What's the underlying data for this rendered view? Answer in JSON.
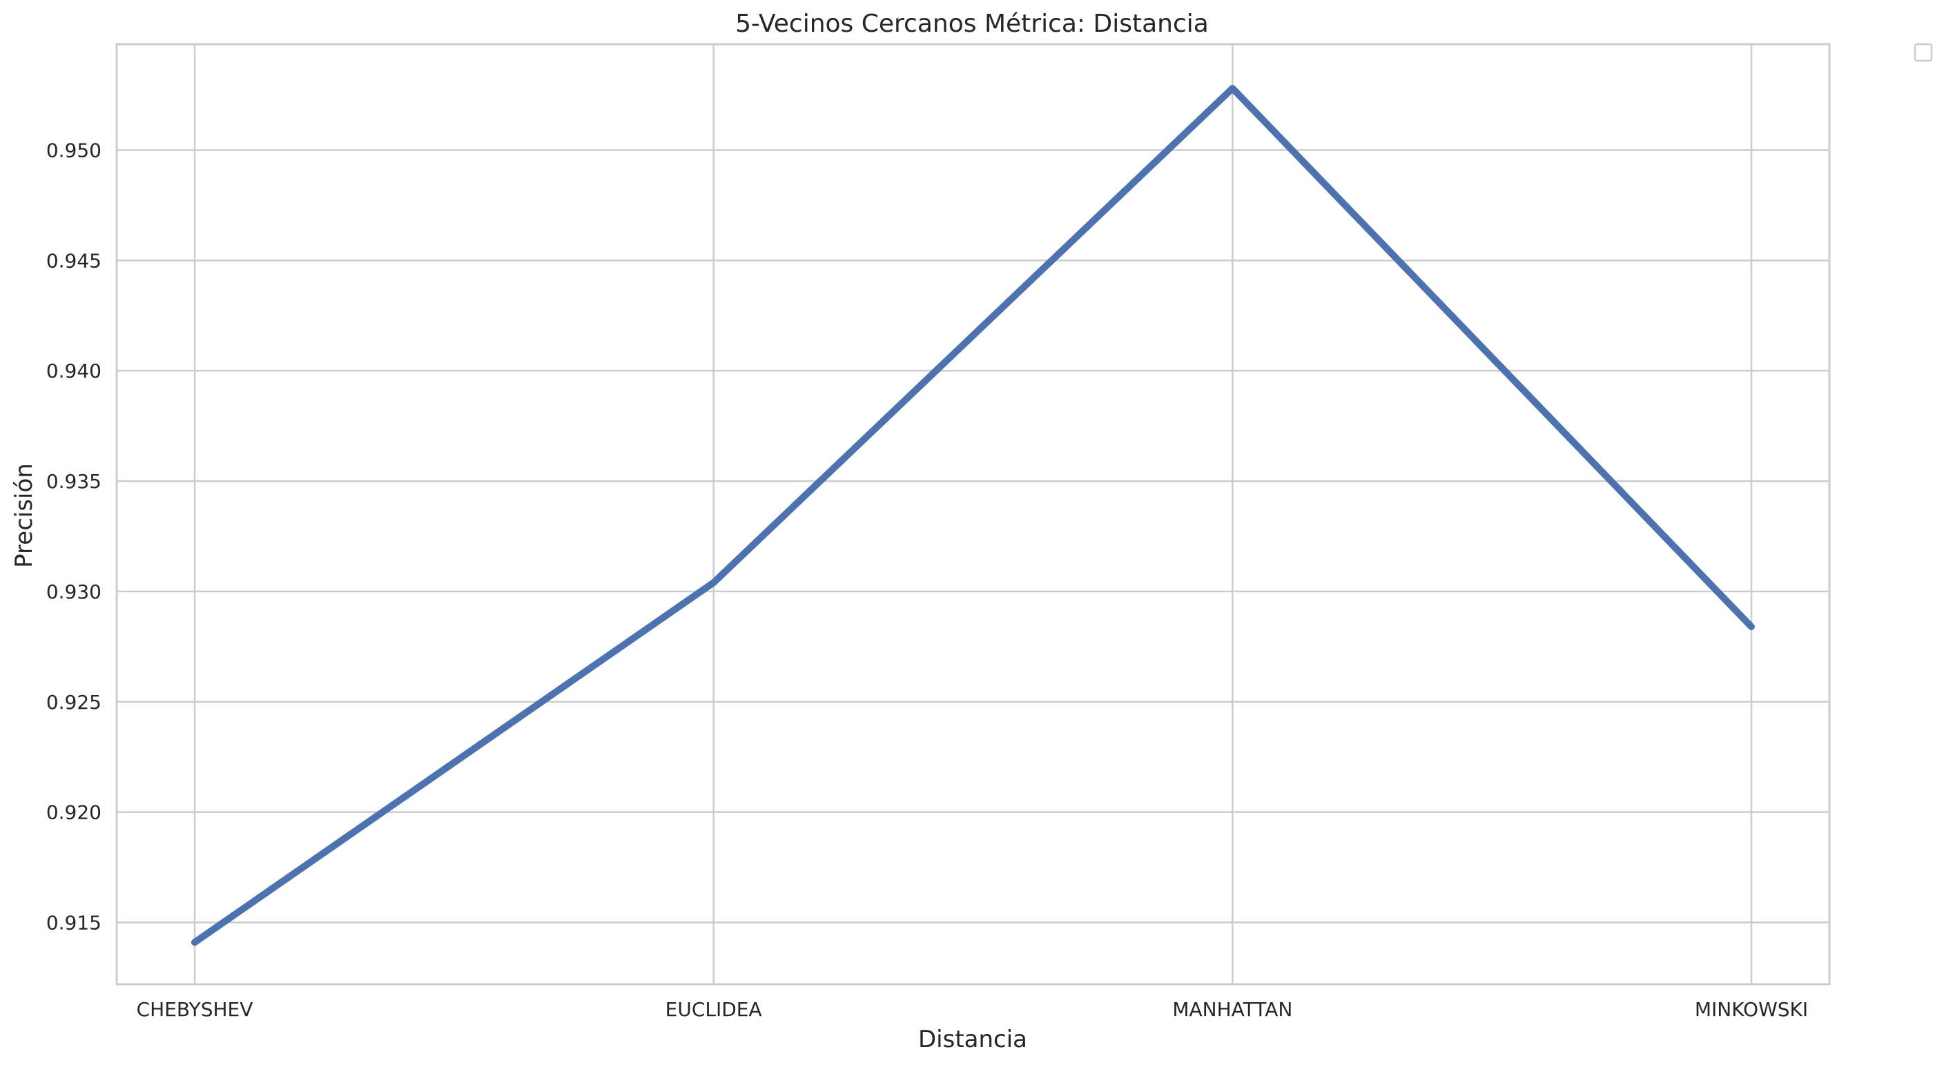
{
  "chart_data": {
    "type": "line",
    "title": "5-Vecinos Cercanos Métrica: Distancia",
    "xlabel": "Distancia",
    "ylabel": "Precisión",
    "categories": [
      "CHEBYSHEV",
      "EUCLIDEA",
      "MANHATTAN",
      "MINKOWSKI"
    ],
    "series": [
      {
        "values": [
          0.9141,
          0.9304,
          0.9528,
          0.9284
        ]
      }
    ],
    "ylim": [
      0.9122,
      0.9548
    ],
    "yticks": [
      0.915,
      0.92,
      0.925,
      0.93,
      0.935,
      0.94,
      0.945,
      0.95
    ],
    "ytick_labels": [
      "0.915",
      "0.920",
      "0.925",
      "0.930",
      "0.935",
      "0.940",
      "0.945",
      "0.950"
    ],
    "grid": true,
    "legend": "empty box, upper right outside plot",
    "colors": {
      "series": "#4c72b0",
      "grid": "#cccccc",
      "text": "#262626"
    }
  }
}
